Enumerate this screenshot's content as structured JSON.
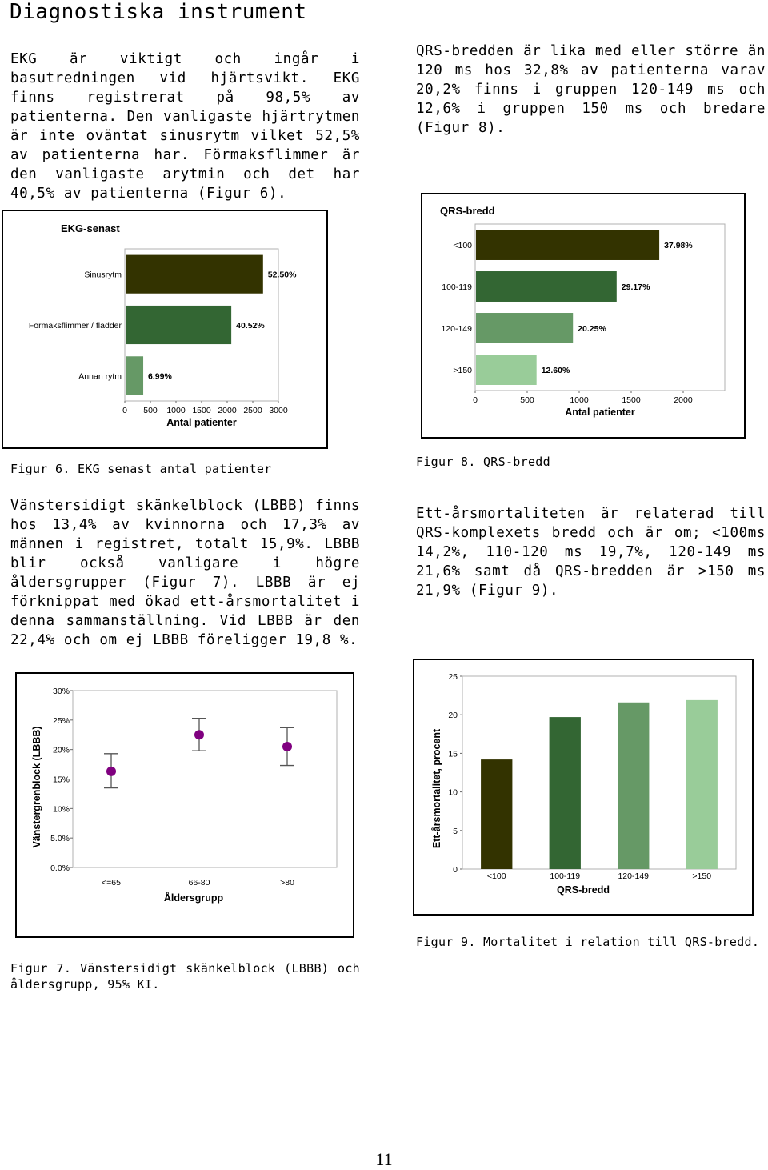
{
  "page": {
    "heading": "Diagnostiska instrument",
    "page_number": "11"
  },
  "text": {
    "p_left_1": "EKG är viktigt och ingår i basutredningen vid hjärtsvikt. EKG finns registrerat på 98,5% av patienterna. Den vanligaste hjärtrytmen är inte oväntat sinusrytm vilket 52,5% av patienterna har. Förmaksflimmer är den vanligaste arytmin och det har 40,5% av patienterna (Figur 6).",
    "p_right_1": "QRS-bredden är lika med eller större än 120 ms hos 32,8% av patienterna varav 20,2% finns i gruppen 120-149 ms och 12,6% i gruppen 150 ms och bredare (Figur 8).",
    "caption_fig6": "Figur 6. EKG senast antal patienter",
    "caption_fig8": "Figur 8. QRS-bredd",
    "p_left_2": "Vänstersidigt skänkelblock (LBBB) finns hos 13,4% av kvinnorna och 17,3% av männen i registret, totalt 15,9%. LBBB blir också vanligare i högre åldersgrupper (Figur 7). LBBB är ej förknippat med ökad ett-årsmortalitet i denna sammanställning. Vid LBBB är den 22,4% och om ej LBBB föreligger 19,8 %.",
    "p_right_2": "Ett-årsmortaliteten är relaterad till QRS-komplexets bredd och är om; <100ms 14,2%, 110-120 ms 19,7%, 120-149 ms 21,6% samt då QRS-bredden är >150 ms 21,9% (Figur 9).",
    "caption_fig9": "Figur 9. Mortalitet i relation till QRS-bredd.",
    "caption_fig7": "Figur 7. Vänstersidigt skänkelblock (LBBB) och åldersgrupp, 95% KI."
  },
  "chart_data": [
    {
      "id": "fig6",
      "type": "bar",
      "orientation": "horizontal",
      "title": "EKG-senast",
      "xlabel": "Antal patienter",
      "ylabel": "",
      "xlim": [
        0,
        3000
      ],
      "xticks": [
        "0",
        "500",
        "1000",
        "1500",
        "2000",
        "2500",
        "3000"
      ],
      "categories": [
        "Sinusrytm",
        "Förmaksflimmer / fladder",
        "Annan rytm"
      ],
      "values": [
        2700,
        2080,
        360
      ],
      "data_labels": [
        "52.50%",
        "40.52%",
        "6.99%"
      ],
      "colors": [
        "#333300",
        "#336633",
        "#669966"
      ]
    },
    {
      "id": "fig8",
      "type": "bar",
      "orientation": "horizontal",
      "title": "QRS-bredd",
      "xlabel": "Antal patienter",
      "ylabel": "",
      "xlim": [
        0,
        2400
      ],
      "xticks": [
        "0",
        "500",
        "1000",
        "1500",
        "2000"
      ],
      "categories": [
        "<100",
        "100-119",
        "120-149",
        ">150"
      ],
      "values": [
        1770,
        1360,
        940,
        590
      ],
      "data_labels": [
        "37.98%",
        "29.17%",
        "20.25%",
        "12.60%"
      ],
      "colors": [
        "#333300",
        "#336633",
        "#669966",
        "#99cc99"
      ]
    },
    {
      "id": "fig7",
      "type": "scatter",
      "title": "",
      "xlabel": "Åldersgrupp",
      "ylabel": "Vänstergrenblock (LBBB)",
      "ylim": [
        0,
        30
      ],
      "yticks": [
        "0.0%",
        "5.0%",
        "10%",
        "15%",
        "20%",
        "25%",
        "30%"
      ],
      "categories": [
        "<=65",
        "66-80",
        ">80"
      ],
      "values": [
        16.3,
        22.5,
        20.5
      ],
      "ci_low": [
        13.5,
        19.8,
        17.3
      ],
      "ci_high": [
        19.3,
        25.3,
        23.7
      ],
      "colors": [
        "#800080"
      ]
    },
    {
      "id": "fig9",
      "type": "bar",
      "orientation": "vertical",
      "title": "",
      "xlabel": "QRS-bredd",
      "ylabel": "Ett-årsmortalitet, procent",
      "ylim": [
        0,
        25
      ],
      "yticks": [
        "0",
        "5",
        "10",
        "15",
        "20",
        "25"
      ],
      "categories": [
        "<100",
        "100-119",
        "120-149",
        ">150"
      ],
      "values": [
        14.2,
        19.7,
        21.6,
        21.9
      ],
      "colors": [
        "#333300",
        "#336633",
        "#669966",
        "#99cc99"
      ]
    }
  ]
}
